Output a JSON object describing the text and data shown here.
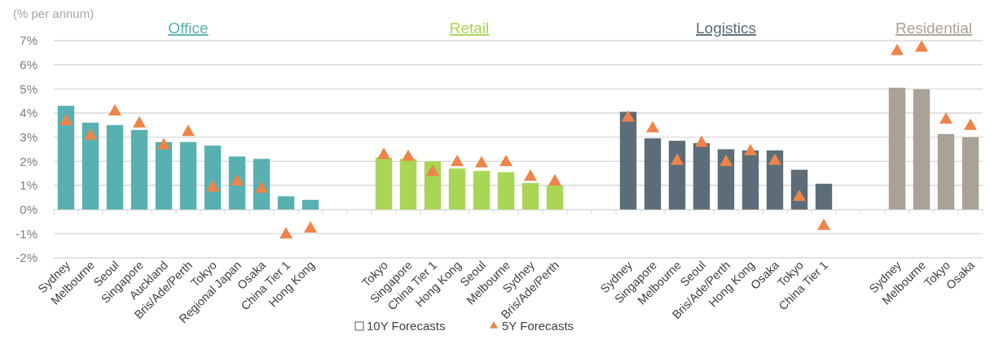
{
  "chart_data": {
    "type": "bar",
    "ylabel": "(% per annum)",
    "legend_title": "10Y Forecasts",
    "categories": [
      "Sydney",
      "Melbourne",
      "Seoul",
      "Singapore",
      "Auckland",
      "Bris/Ade/Perth",
      "Tokyo",
      "Regional Japan",
      "Osaka",
      "China Tier 1",
      "Hong Kong",
      null,
      null,
      "Tokyo",
      "Singapore",
      "China Tier 1",
      "Hong Kong",
      "Seoul",
      "Melbourne",
      "Sydney",
      "Bris/Ade/Perth",
      null,
      null,
      "Sydney",
      "Singapore",
      "Melbourne",
      "Seoul",
      "Bris/Ade/Perth",
      "Hong Kong",
      "Osaka",
      "Tokyo",
      "China Tier 1",
      null,
      null,
      "Sydney",
      "Melbourne",
      "Tokyo",
      "Osaka"
    ],
    "series": [
      {
        "name": "Office",
        "color": "#58b0b1",
        "values": [
          4.3,
          3.6,
          3.5,
          3.3,
          2.8,
          2.8,
          2.65,
          2.2,
          2.1,
          0.55,
          0.4,
          null,
          null,
          null,
          null,
          null,
          null,
          null,
          null,
          null,
          null,
          null,
          null,
          null,
          null,
          null,
          null,
          null,
          null,
          null,
          null,
          null,
          null,
          null,
          null,
          null,
          null,
          null
        ]
      },
      {
        "name": "Retail",
        "color": "#a9d654",
        "values": [
          null,
          null,
          null,
          null,
          null,
          null,
          null,
          null,
          null,
          null,
          null,
          null,
          null,
          2.15,
          2.1,
          2.0,
          1.7,
          1.6,
          1.55,
          1.1,
          1.0,
          null,
          null,
          null,
          null,
          null,
          null,
          null,
          null,
          null,
          null,
          null,
          null,
          null,
          null,
          null,
          null,
          null
        ]
      },
      {
        "name": "Logistics",
        "color": "#5c6d79",
        "values": [
          null,
          null,
          null,
          null,
          null,
          null,
          null,
          null,
          null,
          null,
          null,
          null,
          null,
          null,
          null,
          null,
          null,
          null,
          null,
          null,
          null,
          null,
          null,
          4.05,
          2.95,
          2.85,
          2.75,
          2.5,
          2.45,
          2.45,
          1.65,
          1.07,
          null,
          null,
          null,
          null,
          null,
          null
        ]
      },
      {
        "name": "Residential",
        "color": "#aaa197",
        "values": [
          null,
          null,
          null,
          null,
          null,
          null,
          null,
          null,
          null,
          null,
          null,
          null,
          null,
          null,
          null,
          null,
          null,
          null,
          null,
          null,
          null,
          null,
          null,
          null,
          null,
          null,
          null,
          null,
          null,
          null,
          null,
          null,
          null,
          null,
          5.05,
          4.98,
          3.13,
          3.0
        ]
      },
      {
        "name": "5Y Forecasts",
        "type": "scatter",
        "marker": "triangle",
        "color": "#ee8449",
        "values": [
          3.7,
          3.1,
          4.1,
          3.6,
          2.7,
          3.25,
          0.95,
          1.2,
          0.9,
          -1.0,
          -0.75,
          null,
          null,
          2.3,
          2.22,
          1.6,
          2.0,
          1.95,
          2.0,
          1.4,
          1.2,
          null,
          null,
          3.85,
          3.4,
          2.05,
          2.8,
          2.0,
          2.45,
          2.05,
          0.56,
          -0.64,
          null,
          null,
          6.6,
          6.75,
          3.76,
          3.5
        ]
      }
    ],
    "ylim": [
      -2,
      7
    ],
    "yticks": [
      {
        "value": -2,
        "label": "-2%"
      },
      {
        "value": -1,
        "label": "-1%"
      },
      {
        "value": 0,
        "label": "0%"
      },
      {
        "value": 1,
        "label": "1%"
      },
      {
        "value": 2,
        "label": "2%"
      },
      {
        "value": 3,
        "label": "3%"
      },
      {
        "value": 4,
        "label": "4%"
      },
      {
        "value": 5,
        "label": "5%"
      },
      {
        "value": 6,
        "label": "6%"
      },
      {
        "value": 7,
        "label": "7%"
      }
    ],
    "grid": "y",
    "legend": "bottom"
  }
}
